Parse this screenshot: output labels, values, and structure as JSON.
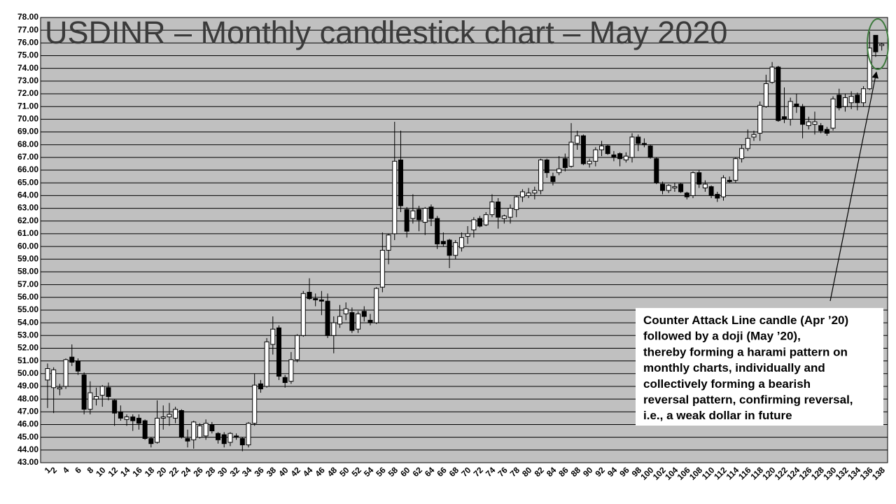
{
  "chart_data": {
    "type": "candlestick",
    "title": "USDINR – Monthly candlestick chart – May 2020",
    "annotation": [
      "Counter Attack Line candle (Apr ’20)",
      "followed by a doji (May ’20),",
      "thereby forming a harami pattern on",
      "monthly charts, individually and",
      "collectively forming a bearish",
      "reversal pattern, confirming reversal,",
      "i.e., a weak dollar in future"
    ],
    "categories": [
      "1",
      "2",
      null,
      "4",
      null,
      "6",
      null,
      "8",
      null,
      "10",
      null,
      "12",
      null,
      "14",
      null,
      "16",
      null,
      "18",
      null,
      "20",
      null,
      "22",
      null,
      "24",
      null,
      "26",
      null,
      "28",
      null,
      "30",
      null,
      "32",
      null,
      "34",
      null,
      "36",
      null,
      "38",
      null,
      "40",
      null,
      "42",
      null,
      "44",
      null,
      "46",
      null,
      "48",
      null,
      "50",
      null,
      "52",
      null,
      "54",
      null,
      "56",
      null,
      "58",
      null,
      "60",
      null,
      "62",
      null,
      "64",
      null,
      "66",
      null,
      "68",
      null,
      "70",
      null,
      "72",
      null,
      "74",
      null,
      "76",
      null,
      "78",
      null,
      "80",
      null,
      "82",
      null,
      "84",
      null,
      "86",
      null,
      "88",
      null,
      "90",
      null,
      "92",
      null,
      "94",
      null,
      "96",
      null,
      "98",
      null,
      "100",
      null,
      "102",
      null,
      "104",
      null,
      "106",
      null,
      "108",
      null,
      "110",
      null,
      "112",
      null,
      "114",
      null,
      "116",
      null,
      "118",
      null,
      "120",
      null,
      "122",
      null,
      "124",
      null,
      "126",
      null,
      "128",
      null,
      "130",
      null,
      "132",
      null,
      "134",
      null,
      "136",
      null,
      "138"
    ],
    "open": [
      49.5,
      48.9,
      48.8,
      49.0,
      51.3,
      51.0,
      49.9,
      47.2,
      48.0,
      48.3,
      48.9,
      47.9,
      47.0,
      46.4,
      46.6,
      46.5,
      46.3,
      44.9,
      44.6,
      46.5,
      46.6,
      46.5,
      47.1,
      44.9,
      44.8,
      45.0,
      45.1,
      46.0,
      45.3,
      45.2,
      44.6,
      45.1,
      44.9,
      44.4,
      46.1,
      49.2,
      49.0,
      52.3,
      53.6,
      49.7,
      49.4,
      51.1,
      53.0,
      56.4,
      55.9,
      55.8,
      55.7,
      53.0,
      53.9,
      54.7,
      54.8,
      53.5,
      54.9,
      54.2,
      54.0,
      56.8,
      59.7,
      61.0,
      66.8,
      62.9,
      62.2,
      62.9,
      61.9,
      63.1,
      62.2,
      60.4,
      60.5,
      59.3,
      59.9,
      60.8,
      61.3,
      62.2,
      61.7,
      62.5,
      63.5,
      62.2,
      62.3,
      62.9,
      63.9,
      64.0,
      64.2,
      64.4,
      66.8,
      65.5,
      65.8,
      66.9,
      66.3,
      68.1,
      68.7,
      66.5,
      66.7,
      67.6,
      67.9,
      67.2,
      67.3,
      66.8,
      67.0,
      68.6,
      68.1,
      67.9,
      66.9,
      64.9,
      64.4,
      64.6,
      64.9,
      64.2,
      64.0,
      65.8,
      64.6,
      64.7,
      64.1,
      63.9,
      65.2,
      65.2,
      66.9,
      67.7,
      68.6,
      68.9,
      71.0,
      72.9,
      74.1,
      70.2,
      70.0,
      71.2,
      71.0,
      69.5,
      69.6,
      69.5,
      69.2,
      69.3,
      71.9,
      71.0,
      71.3,
      71.9,
      71.3,
      72.4,
      76.6,
      75.8
    ],
    "high": [
      50.8,
      50.5,
      49.2,
      51.2,
      52.3,
      51.2,
      50.1,
      49.4,
      48.9,
      49.1,
      49.3,
      48.0,
      47.5,
      46.8,
      46.8,
      46.8,
      46.4,
      45.0,
      47.9,
      47.5,
      47.7,
      47.4,
      47.2,
      45.6,
      46.3,
      46.1,
      46.4,
      46.2,
      45.4,
      45.4,
      45.4,
      45.3,
      45.0,
      46.2,
      50.0,
      49.5,
      52.8,
      54.5,
      53.8,
      49.9,
      51.7,
      53.1,
      56.5,
      57.5,
      56.3,
      56.5,
      56.3,
      54.5,
      55.4,
      55.6,
      55.2,
      54.9,
      55.3,
      54.7,
      56.8,
      61.1,
      61.0,
      69.8,
      69.1,
      63.1,
      64.1,
      63.2,
      63.1,
      63.3,
      62.4,
      61.1,
      60.6,
      60.5,
      61.1,
      61.6,
      62.3,
      62.4,
      62.7,
      64.1,
      63.8,
      62.5,
      63.3,
      64.0,
      64.5,
      64.6,
      64.7,
      66.9,
      66.9,
      65.8,
      67.1,
      67.3,
      69.7,
      69.1,
      68.8,
      66.9,
      67.8,
      68.3,
      68.0,
      67.5,
      67.4,
      67.4,
      68.9,
      68.8,
      68.5,
      68.0,
      67.0,
      65.1,
      64.9,
      65.0,
      65.0,
      64.3,
      65.9,
      66.0,
      65.2,
      64.8,
      64.3,
      65.6,
      65.5,
      67.0,
      68.0,
      69.2,
      69.1,
      71.4,
      73.5,
      74.5,
      74.2,
      72.5,
      71.7,
      72.0,
      71.2,
      70.2,
      70.6,
      69.7,
      69.4,
      71.8,
      72.4,
      72.0,
      72.2,
      72.1,
      72.6,
      76.9,
      76.6,
      76.0
    ],
    "low": [
      47.3,
      46.9,
      48.3,
      48.8,
      50.6,
      49.9,
      46.8,
      46.8,
      47.5,
      47.4,
      47.9,
      45.9,
      46.3,
      45.9,
      45.5,
      45.6,
      44.8,
      44.2,
      44.5,
      45.6,
      45.9,
      46.1,
      44.9,
      44.2,
      44.1,
      44.9,
      44.8,
      45.3,
      44.5,
      44.2,
      44.3,
      44.8,
      43.9,
      44.2,
      45.9,
      48.5,
      48.9,
      51.5,
      49.5,
      48.9,
      49.2,
      50.9,
      52.9,
      55.8,
      55.3,
      54.6,
      52.8,
      51.6,
      53.6,
      54.2,
      53.2,
      53.2,
      54.1,
      53.8,
      53.9,
      56.4,
      58.6,
      60.5,
      62.7,
      60.7,
      61.8,
      61.2,
      60.9,
      61.6,
      59.8,
      60.0,
      58.3,
      59.0,
      59.6,
      60.2,
      60.7,
      61.5,
      61.6,
      62.3,
      61.4,
      61.8,
      61.8,
      62.3,
      63.5,
      63.8,
      63.7,
      64.1,
      65.4,
      64.8,
      65.6,
      65.9,
      66.2,
      67.6,
      66.4,
      66.2,
      66.3,
      67.1,
      67.2,
      66.7,
      66.3,
      66.6,
      66.6,
      67.5,
      67.8,
      66.9,
      64.9,
      64.1,
      64.2,
      64.3,
      64.2,
      63.7,
      63.8,
      64.6,
      64.3,
      63.8,
      63.5,
      63.6,
      65.0,
      65.0,
      66.6,
      67.5,
      68.3,
      68.3,
      70.9,
      72.8,
      69.8,
      69.7,
      69.5,
      70.5,
      68.5,
      69.2,
      68.8,
      68.9,
      68.7,
      69.1,
      70.7,
      70.6,
      70.8,
      70.7,
      71.0,
      72.3,
      74.9,
      75.4
    ],
    "close": [
      50.4,
      50.3,
      48.9,
      51.1,
      50.9,
      50.2,
      47.2,
      48.5,
      48.2,
      49.0,
      48.2,
      46.9,
      46.5,
      46.6,
      46.3,
      46.1,
      44.9,
      44.5,
      46.5,
      46.6,
      46.8,
      47.2,
      45.0,
      44.7,
      46.2,
      45.9,
      46.1,
      45.5,
      44.8,
      44.5,
      45.3,
      45.0,
      44.4,
      46.1,
      49.1,
      48.8,
      52.5,
      53.5,
      49.8,
      49.3,
      51.1,
      53.0,
      56.3,
      55.9,
      55.8,
      55.7,
      53.0,
      54.0,
      54.5,
      55.1,
      53.4,
      54.7,
      54.5,
      54.0,
      56.7,
      59.7,
      60.9,
      66.7,
      63.2,
      61.2,
      62.8,
      62.1,
      63.0,
      62.2,
      60.2,
      60.2,
      59.3,
      60.3,
      60.7,
      61.0,
      62.1,
      61.6,
      62.5,
      63.5,
      62.3,
      62.4,
      63.0,
      63.9,
      64.3,
      64.2,
      64.4,
      66.8,
      65.8,
      65.1,
      66.1,
      66.2,
      68.2,
      68.7,
      66.5,
      66.7,
      67.6,
      67.9,
      67.3,
      67.0,
      66.9,
      67.1,
      68.6,
      68.1,
      68.0,
      67.0,
      65.0,
      64.4,
      64.8,
      64.7,
      64.3,
      63.9,
      65.8,
      64.9,
      64.9,
      64.0,
      63.8,
      65.4,
      65.1,
      66.9,
      67.7,
      68.5,
      68.8,
      71.1,
      72.8,
      74.1,
      69.9,
      70.0,
      71.4,
      71.0,
      69.6,
      69.8,
      69.8,
      69.1,
      68.9,
      71.6,
      70.9,
      71.7,
      71.8,
      71.3,
      72.4,
      75.6,
      75.3,
      75.9
    ],
    "ylim": [
      43,
      78
    ],
    "yticks": [
      {
        "value": 43,
        "label": "43.00"
      },
      {
        "value": 44,
        "label": "44.00"
      },
      {
        "value": 45,
        "label": "45.00"
      },
      {
        "value": 46,
        "label": "46.00"
      },
      {
        "value": 47,
        "label": "47.00"
      },
      {
        "value": 48,
        "label": "48.00"
      },
      {
        "value": 49,
        "label": "49.00"
      },
      {
        "value": 50,
        "label": "50.00"
      },
      {
        "value": 51,
        "label": "51.00"
      },
      {
        "value": 52,
        "label": "52.00"
      },
      {
        "value": 53,
        "label": "53.00"
      },
      {
        "value": 54,
        "label": "54.00"
      },
      {
        "value": 55,
        "label": "55.00"
      },
      {
        "value": 56,
        "label": "56.00"
      },
      {
        "value": 57,
        "label": "57.00"
      },
      {
        "value": 58,
        "label": "58.00"
      },
      {
        "value": 59,
        "label": "59.00"
      },
      {
        "value": 60,
        "label": "60.00"
      },
      {
        "value": 61,
        "label": "61.00"
      },
      {
        "value": 62,
        "label": "62.00"
      },
      {
        "value": 63,
        "label": "63.00"
      },
      {
        "value": 64,
        "label": "64.00"
      },
      {
        "value": 65,
        "label": "65.00"
      },
      {
        "value": 66,
        "label": "66.00"
      },
      {
        "value": 67,
        "label": "67.00"
      },
      {
        "value": 68,
        "label": "68.00"
      },
      {
        "value": 69,
        "label": "69.00"
      },
      {
        "value": 70,
        "label": "70.00"
      },
      {
        "value": 71,
        "label": "71.00"
      },
      {
        "value": 72,
        "label": "72.00"
      },
      {
        "value": 73,
        "label": "73.00"
      },
      {
        "value": 74,
        "label": "74.00"
      },
      {
        "value": 75,
        "label": "75.00"
      },
      {
        "value": 76,
        "label": "76.00"
      },
      {
        "value": 77,
        "label": "77.00"
      },
      {
        "value": 78,
        "label": "78.00"
      }
    ],
    "grid": true,
    "up_color": "#ffffff",
    "down_color": "#000000",
    "background_color": "#c0c0c0"
  }
}
